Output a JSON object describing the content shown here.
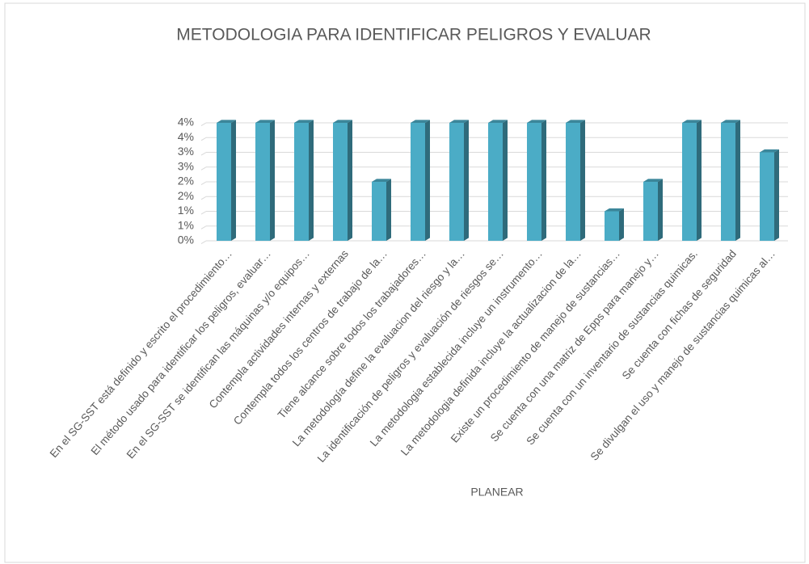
{
  "chart_data": {
    "type": "bar3d",
    "title": "METODOLOGIA  PARA IDENTIFICAR  PELIGROS Y EVALUAR",
    "xlabel": "PLANEAR",
    "categories": [
      "En el SG-SST está definido y escrito el procedimiento…",
      "El método usado  para identificar los peligros, evaluar…",
      "En el SG-SST se identifican las máquinas y/o equipos…",
      "Contempla actividades internas y externas",
      "Contempla todos los centros de trabajo de la…",
      "Tiene alcance sobre todos los trabajadores…",
      "La metodología define la evaluacion del riesgo y la…",
      "La identificación de peligros y evaluación de riesgos se…",
      "La metodologia establecida incluye un instrumento…",
      "La metodologia definida incluye la  actualizacion de la…",
      "Existe un procedimiento de manejo de sustancias…",
      "Se cuenta con una matriz de Epps para manejo y…",
      "Se cuenta con un inventario de sustancias quimicas.",
      "Se cuenta con fichas de seguridad",
      "Se divulgan el uso y manejo de sustancias quimicas al…"
    ],
    "values": [
      4,
      4,
      4,
      4,
      2,
      4,
      4,
      4,
      4,
      4,
      1,
      2,
      4,
      4,
      3
    ],
    "color": "#4bacc6",
    "ylim": [
      0,
      4
    ],
    "yticks": [
      {
        "value": 0,
        "label": "0%"
      },
      {
        "value": 0.5,
        "label": "1%"
      },
      {
        "value": 1,
        "label": "1%"
      },
      {
        "value": 1.5,
        "label": "2%"
      },
      {
        "value": 2,
        "label": "2%"
      },
      {
        "value": 2.5,
        "label": "3%"
      },
      {
        "value": 3,
        "label": "3%"
      },
      {
        "value": 3.5,
        "label": "4%"
      },
      {
        "value": 4,
        "label": "4%"
      }
    ],
    "grid": true
  }
}
